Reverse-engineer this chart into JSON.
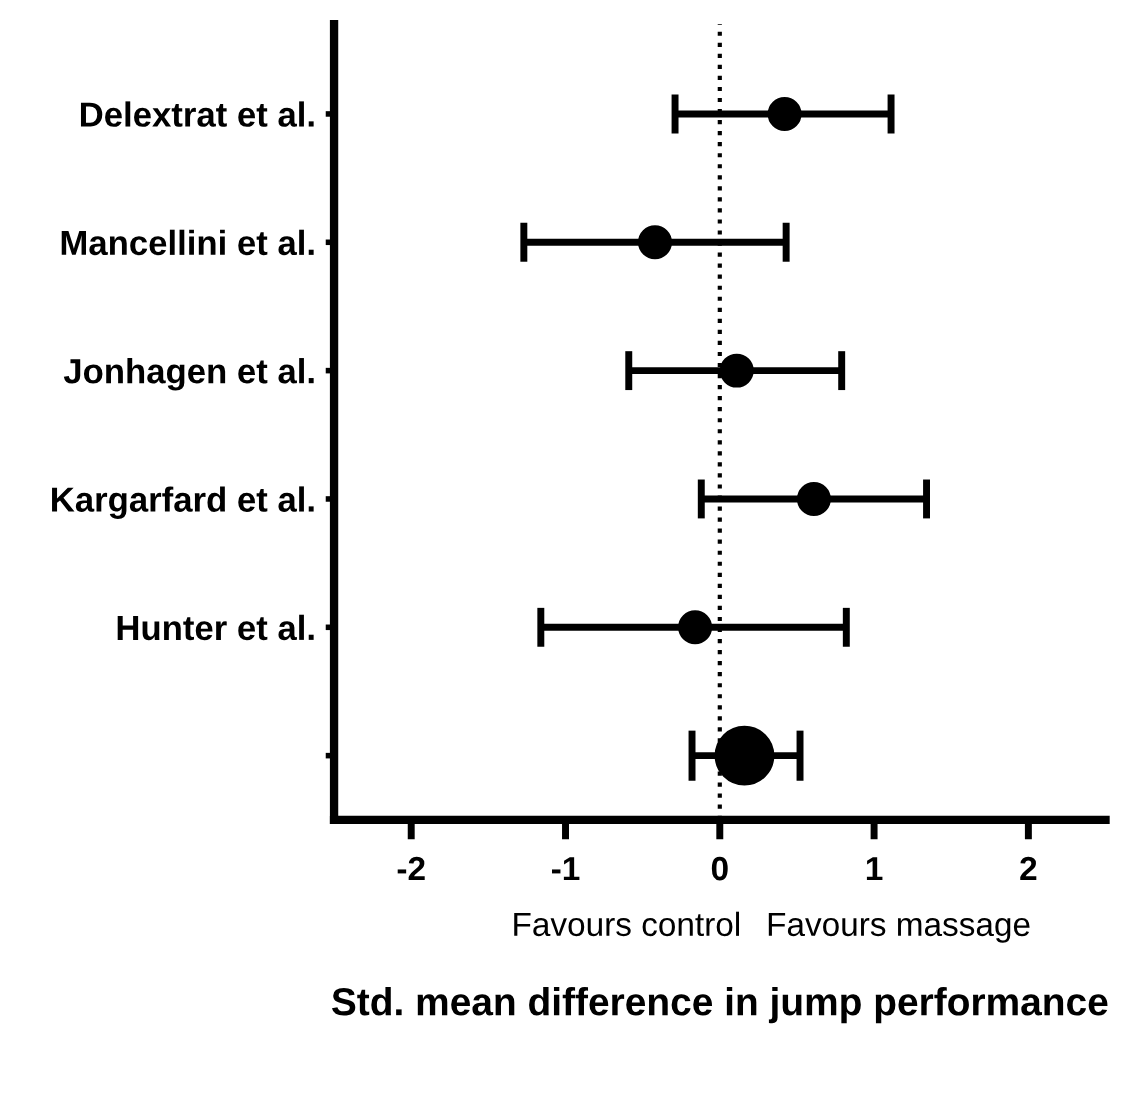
{
  "chart_data": {
    "type": "bubble",
    "orientation": "horizontal",
    "categories": [
      "Delextrat et al.",
      "Mancellini et al.",
      "Jonhagen et al.",
      "Kargarfard et al.",
      "Hunter et al.",
      null
    ],
    "values": [
      0.42,
      -0.42,
      0.11,
      0.61,
      -0.16,
      0.16
    ],
    "sizes": [
      0.3,
      0.3,
      0.3,
      0.3,
      0.3,
      1
    ],
    "errors": [
      [
        -0.29,
        1.11
      ],
      [
        -1.27,
        0.43
      ],
      [
        -0.59,
        0.79
      ],
      [
        -0.12,
        1.34
      ],
      [
        -1.16,
        0.82
      ],
      [
        -0.18,
        0.52
      ]
    ],
    "colors": [
      "#000000",
      "#000000",
      "#000000",
      "#000000",
      "#000000",
      "#000000"
    ],
    "xlim": [
      -2.5,
      2.5
    ],
    "xticks": [
      -2,
      -1,
      0,
      1,
      2
    ],
    "xlabel": "Std. mean difference in jump performance",
    "ref_lines": [
      {
        "axis": "x",
        "value": 0,
        "line_style": "dotted",
        "color": "#000000"
      }
    ],
    "annotations": [
      "Favours control",
      "Favours massage"
    ],
    "grid": false,
    "legend": false
  }
}
